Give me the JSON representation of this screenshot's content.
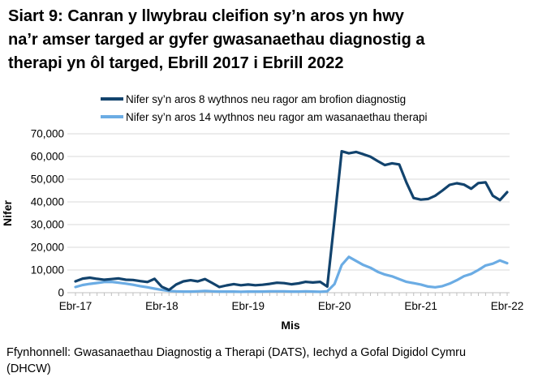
{
  "title_lines": [
    "Siart 9: Canran y llwybrau cleifion sy’n aros yn hwy",
    "na’r amser targed ar gyfer gwasanaethau diagnostig a",
    "therapi yn ôl targed, Ebrill 2017 i Ebrill 2022"
  ],
  "footer": {
    "line1": "Ffynhonnell: Gwasanaethau Diagnostig a Therapi (DATS), Iechyd a Gofal Digidol Cymru",
    "line2": "(DHCW)"
  },
  "chart_data": {
    "type": "line",
    "title": "Siart 9: Canran y llwybrau cleifion sy’n aros yn hwy na’r amser targed ar gyfer gwasanaethau diagnostig a therapi yn ôl targed, Ebrill 2017 i Ebrill 2022",
    "xlabel": "Mis",
    "ylabel": "Nifer",
    "ylim": [
      0,
      70000
    ],
    "y_ticks": [
      0,
      10000,
      20000,
      30000,
      40000,
      50000,
      60000,
      70000
    ],
    "y_tick_labels": [
      "0",
      "10,000",
      "20,000",
      "30,000",
      "40,000",
      "50,000",
      "60,000",
      "70,000"
    ],
    "x_range": [
      "Ebrill 2017",
      "Ebrill 2022"
    ],
    "x_interval": "monthly",
    "x_tick_labels": [
      "Ebr-17",
      "Ebr-18",
      "Ebr-19",
      "Ebr-20",
      "Ebr-21",
      "Ebr-22"
    ],
    "x_tick_month_indices": [
      0,
      12,
      24,
      36,
      48,
      60
    ],
    "grid": "horizontal",
    "legend_position": "top",
    "series": [
      {
        "name": "Nifer sy’n aros 8 wythnos neu ragor am brofion diagnostig",
        "color": "#12436D",
        "values": [
          5000,
          6200,
          6600,
          6100,
          5700,
          6000,
          6300,
          5700,
          5600,
          5100,
          4700,
          6100,
          2600,
          1200,
          3600,
          5000,
          5500,
          5000,
          6000,
          4300,
          2500,
          3200,
          3800,
          3300,
          3600,
          3300,
          3500,
          3900,
          4400,
          4200,
          3700,
          4100,
          4800,
          4500,
          4800,
          2700,
          32000,
          62300,
          61400,
          62000,
          61000,
          59900,
          58000,
          56200,
          57000,
          56500,
          48500,
          41700,
          41000,
          41300,
          42700,
          45000,
          47500,
          48200,
          47600,
          45800,
          48300,
          48600,
          42700,
          40800,
          44300
        ]
      },
      {
        "name": "Nifer sy’n aros 14 wythnos neu ragor am wasanaethau therapi",
        "color": "#6BACE4",
        "values": [
          2500,
          3400,
          3900,
          4300,
          4700,
          4800,
          4400,
          4000,
          3500,
          2900,
          2400,
          1800,
          1200,
          800,
          600,
          500,
          500,
          600,
          800,
          600,
          500,
          500,
          500,
          400,
          500,
          500,
          500,
          600,
          600,
          600,
          500,
          500,
          600,
          500,
          400,
          600,
          3800,
          12200,
          15800,
          14000,
          12200,
          11000,
          9200,
          8000,
          7200,
          6000,
          4800,
          4200,
          3600,
          2700,
          2400,
          2900,
          4000,
          5500,
          7300,
          8300,
          10000,
          12000,
          12800,
          14200,
          13000
        ]
      }
    ]
  }
}
